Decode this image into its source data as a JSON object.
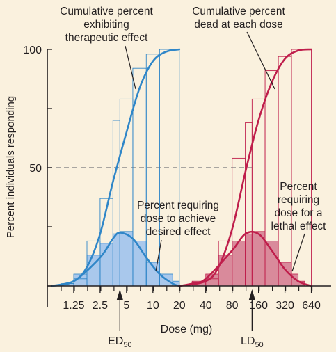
{
  "colors": {
    "background": "#faf1de",
    "therapeutic": "#2f86c8",
    "therapeutic_fill": "#a9c8ec",
    "lethal": "#bf1e4b",
    "lethal_fill": "#d98a9b",
    "axis": "#231f20",
    "reference_line": "#8c8c8c"
  },
  "chart_data": {
    "type": "line",
    "xlabel": "Dose (mg)",
    "ylabel": "Percent individuals responding",
    "x_scale": "log2",
    "xlim": [
      0.625,
      1000
    ],
    "ylim": [
      0,
      100
    ],
    "x_tick_labels": [
      "1.25",
      "2.5",
      "5",
      "10",
      "20",
      "40",
      "80",
      "160",
      "320",
      "640"
    ],
    "x_tick_values": [
      1.25,
      2.5,
      5,
      10,
      20,
      40,
      80,
      160,
      320,
      640
    ],
    "y_tick_labels": [
      "50",
      "100"
    ],
    "y_tick_values": [
      50,
      100
    ],
    "reference_line_y": 50,
    "series": [
      {
        "kind": "cumulative",
        "color_key": "therapeutic",
        "x": [
          0.7,
          1.25,
          1.77,
          2.5,
          3.5,
          5.0,
          7.1,
          10,
          14.1,
          20
        ],
        "y": [
          0,
          2,
          8,
          22,
          44,
          65,
          84,
          95,
          99,
          100
        ],
        "steps": [
          {
            "x0": 0.9,
            "x1": 1.25,
            "y": 1
          },
          {
            "x0": 1.25,
            "x1": 1.77,
            "y": 3
          },
          {
            "x0": 1.77,
            "x1": 2.5,
            "y": 19
          },
          {
            "x0": 2.5,
            "x1": 3.5,
            "y": 37
          },
          {
            "x0": 3.5,
            "x1": 4.2,
            "y": 70
          },
          {
            "x0": 4.2,
            "x1": 5.9,
            "y": 79
          },
          {
            "x0": 5.9,
            "x1": 8.4,
            "y": 92
          },
          {
            "x0": 8.4,
            "x1": 11.9,
            "y": 98
          },
          {
            "x0": 11.9,
            "x1": 20,
            "y": 100
          }
        ]
      },
      {
        "kind": "distribution",
        "color_key": "therapeutic",
        "x": [
          0.7,
          1.25,
          2.5,
          3.5,
          4.2,
          5.9,
          8.4,
          11.9,
          16.8,
          20
        ],
        "y": [
          0,
          2,
          12,
          20,
          22.5,
          20,
          12,
          5,
          1,
          0
        ],
        "bars": [
          {
            "x0": 1.0,
            "x1": 1.25,
            "y": 1
          },
          {
            "x0": 1.25,
            "x1": 1.77,
            "y": 5
          },
          {
            "x0": 1.77,
            "x1": 2.5,
            "y": 13
          },
          {
            "x0": 2.5,
            "x1": 3.5,
            "y": 18
          },
          {
            "x0": 3.5,
            "x1": 4.2,
            "y": 22
          },
          {
            "x0": 4.2,
            "x1": 5.9,
            "y": 23
          },
          {
            "x0": 5.9,
            "x1": 8.4,
            "y": 19
          },
          {
            "x0": 8.4,
            "x1": 11.9,
            "y": 10
          },
          {
            "x0": 11.9,
            "x1": 16.8,
            "y": 5
          },
          {
            "x0": 16.8,
            "x1": 20,
            "y": 2
          }
        ]
      },
      {
        "kind": "cumulative",
        "color_key": "lethal",
        "x": [
          20,
          40,
          56,
          80,
          113,
          160,
          226,
          320,
          453,
          640
        ],
        "y": [
          0,
          2,
          8,
          24,
          48,
          70,
          86,
          96,
          99.5,
          100
        ],
        "steps": [
          {
            "x0": 40,
            "x1": 56,
            "y": 3
          },
          {
            "x0": 56,
            "x1": 80,
            "y": 19
          },
          {
            "x0": 80,
            "x1": 113,
            "y": 54
          },
          {
            "x0": 113,
            "x1": 135,
            "y": 69
          },
          {
            "x0": 135,
            "x1": 190,
            "y": 79
          },
          {
            "x0": 190,
            "x1": 269,
            "y": 91
          },
          {
            "x0": 269,
            "x1": 380,
            "y": 97
          },
          {
            "x0": 380,
            "x1": 640,
            "y": 100
          }
        ]
      },
      {
        "kind": "distribution",
        "color_key": "lethal",
        "x": [
          20,
          28,
          40,
          80,
          113,
          160,
          226,
          320,
          453,
          640
        ],
        "y": [
          0,
          1,
          3,
          15,
          22,
          22,
          15,
          7,
          2,
          0
        ],
        "bars": [
          {
            "x0": 28,
            "x1": 40,
            "y": 2
          },
          {
            "x0": 40,
            "x1": 56,
            "y": 5
          },
          {
            "x0": 56,
            "x1": 80,
            "y": 13
          },
          {
            "x0": 80,
            "x1": 113,
            "y": 19
          },
          {
            "x0": 113,
            "x1": 135,
            "y": 22
          },
          {
            "x0": 135,
            "x1": 190,
            "y": 23
          },
          {
            "x0": 190,
            "x1": 269,
            "y": 19
          },
          {
            "x0": 269,
            "x1": 380,
            "y": 10
          },
          {
            "x0": 380,
            "x1": 453,
            "y": 5
          },
          {
            "x0": 453,
            "x1": 538,
            "y": 2
          }
        ]
      }
    ],
    "annotations": {
      "cum_therapeutic": [
        "Cumulative percent",
        "exhibiting",
        "therapeutic effect"
      ],
      "cum_lethal": [
        "Cumulative percent",
        "dead at each dose"
      ],
      "dist_therapeutic": [
        "Percent requiring",
        "dose to achieve",
        "desired effect"
      ],
      "dist_lethal": [
        "Percent",
        "requiring",
        "dose for a",
        "lethal effect"
      ],
      "ed50": {
        "base": "ED",
        "sub": "50",
        "x": 4.2
      },
      "ld50": {
        "base": "LD",
        "sub": "50",
        "x": 135
      }
    }
  }
}
